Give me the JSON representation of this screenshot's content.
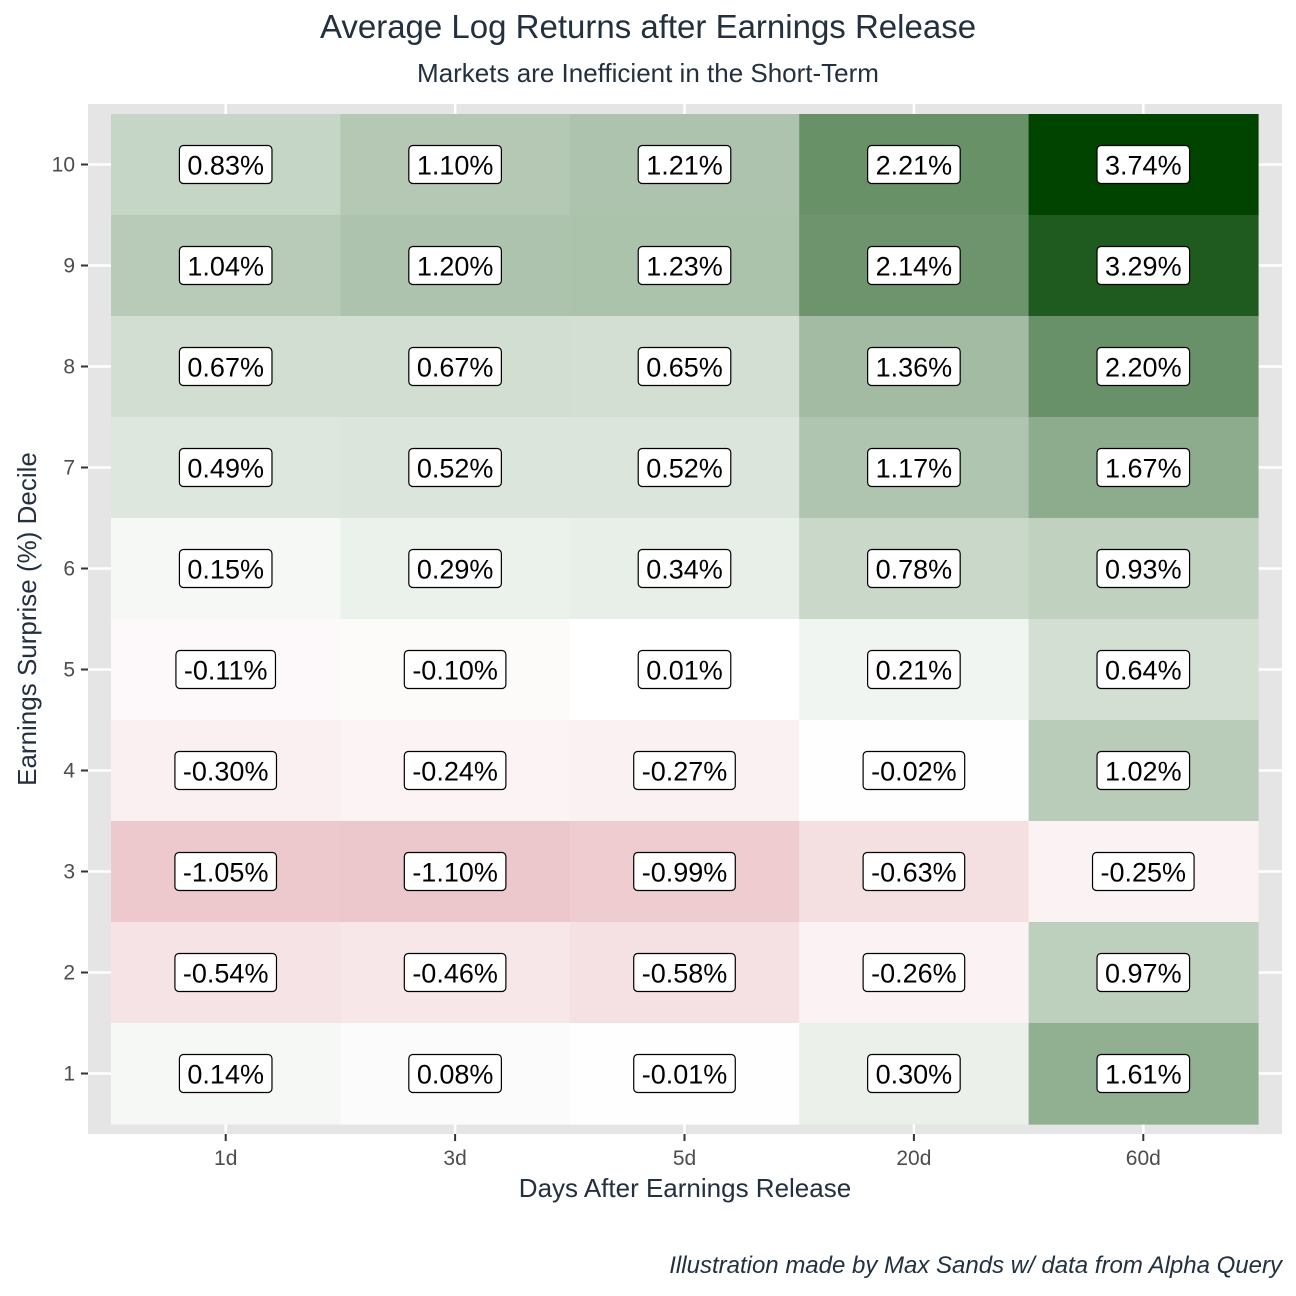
{
  "chart_data": {
    "type": "heatmap",
    "title": "Average Log Returns after Earnings Release",
    "subtitle": "Markets are Inefficient in the Short-Term",
    "xlabel": "Days After Earnings Release",
    "ylabel": "Earnings Surprise (%) Decile",
    "caption": "Illustration made by Max Sands w/ data from Alpha Query",
    "x_categories": [
      "1d",
      "3d",
      "5d",
      "20d",
      "60d"
    ],
    "y_categories": [
      "1",
      "2",
      "3",
      "4",
      "5",
      "6",
      "7",
      "8",
      "9",
      "10"
    ],
    "unit": "%",
    "values": [
      {
        "decile": "10",
        "v": [
          0.83,
          1.1,
          1.21,
          2.21,
          3.74
        ]
      },
      {
        "decile": "9",
        "v": [
          1.04,
          1.2,
          1.23,
          2.14,
          3.29
        ]
      },
      {
        "decile": "8",
        "v": [
          0.67,
          0.67,
          0.65,
          1.36,
          2.2
        ]
      },
      {
        "decile": "7",
        "v": [
          0.49,
          0.52,
          0.52,
          1.17,
          1.67
        ]
      },
      {
        "decile": "6",
        "v": [
          0.15,
          0.29,
          0.34,
          0.78,
          0.93
        ]
      },
      {
        "decile": "5",
        "v": [
          -0.11,
          -0.1,
          0.01,
          0.21,
          0.64
        ]
      },
      {
        "decile": "4",
        "v": [
          -0.3,
          -0.24,
          -0.27,
          -0.02,
          1.02
        ]
      },
      {
        "decile": "3",
        "v": [
          -1.05,
          -1.1,
          -0.99,
          -0.63,
          -0.25
        ]
      },
      {
        "decile": "2",
        "v": [
          -0.54,
          -0.46,
          -0.58,
          -0.26,
          0.97
        ]
      },
      {
        "decile": "1",
        "v": [
          0.14,
          0.08,
          -0.01,
          0.3,
          1.61
        ]
      }
    ],
    "colors": {
      "panel_background": "#e5e5e5",
      "grid": "#ffffff",
      "low": "#b2182b",
      "mid": "#ffffff",
      "high": "#004400"
    }
  }
}
